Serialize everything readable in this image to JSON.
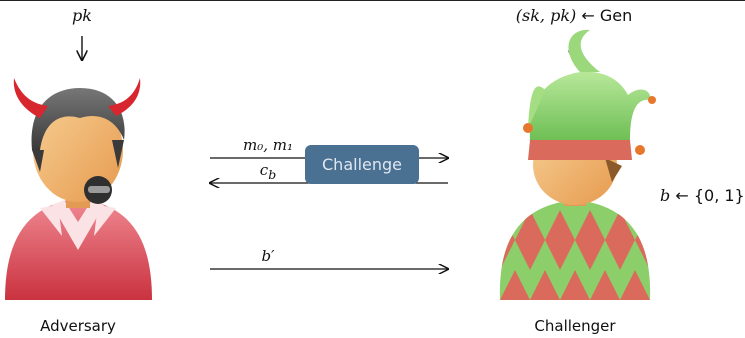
{
  "adversary": {
    "input": "pk",
    "name": "Adversary"
  },
  "challenger": {
    "input_lhs": "(sk, pk)",
    "input_arrow": "←",
    "input_rhs": "Gen",
    "bit_lhs": "b",
    "bit_arrow": "←",
    "bit_set": "{0, 1}",
    "name": "Challenger"
  },
  "exchange": {
    "msg_to_challenger": "m₀, m₁",
    "msg_to_adversary": "c_b",
    "final_guess": "b′",
    "box_label": "Challenge"
  },
  "colors": {
    "box_fill": "#4a7092",
    "adversary_suit": "#d84c5a",
    "challenger_diamond_red": "#d96a5c",
    "challenger_diamond_green": "#8ccf6a",
    "jester_hat": "#86cf6b",
    "skin": "#f2b36c"
  },
  "icons": [
    "devil-avatar-icon",
    "jester-avatar-icon"
  ]
}
